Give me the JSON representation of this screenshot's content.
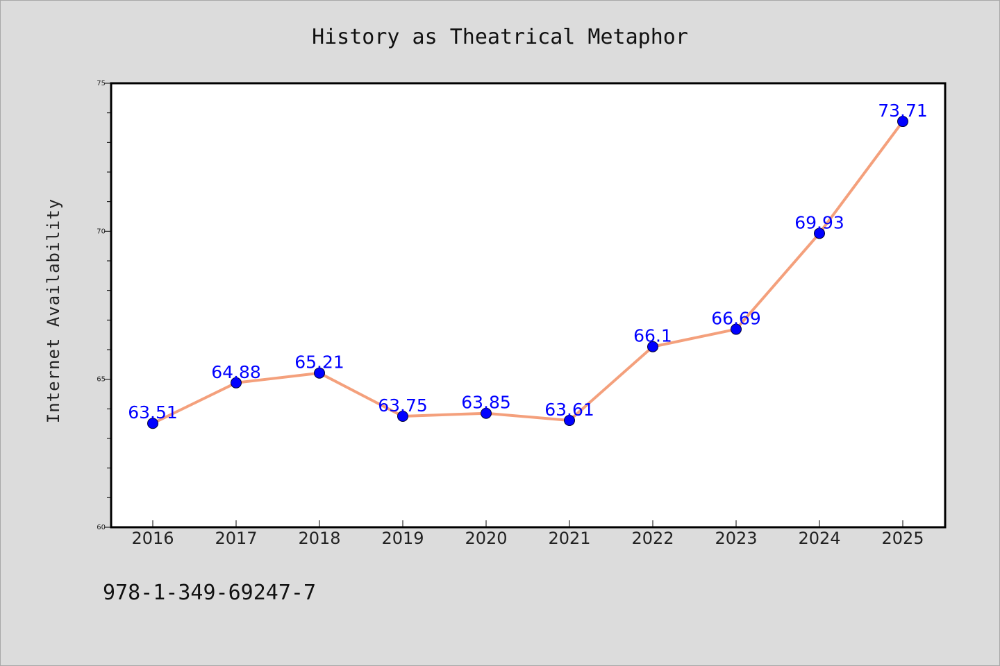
{
  "chart_data": {
    "type": "line",
    "title": "History as Theatrical Metaphor",
    "xlabel": "",
    "ylabel": "Internet Availability",
    "categories": [
      "2016",
      "2017",
      "2018",
      "2019",
      "2020",
      "2021",
      "2022",
      "2023",
      "2024",
      "2025"
    ],
    "series": [
      {
        "values": [
          63.51,
          64.88,
          65.21,
          63.75,
          63.85,
          63.61,
          66.1,
          66.69,
          69.93,
          73.71
        ],
        "labels": [
          "63.51",
          "64.88",
          "65.21",
          "63.75",
          "63.85",
          "63.61",
          "66.1",
          "66.69",
          "69.93",
          "73.71"
        ],
        "line_color": "#f4a07c",
        "marker_color": "#0000ff"
      }
    ],
    "ylim": [
      60,
      75
    ],
    "yticks": [
      "60",
      "65",
      "70",
      "75"
    ],
    "grid": false,
    "legend": "none"
  },
  "footer": {
    "isbn": "978-1-349-69247-7"
  },
  "colors": {
    "background": "#dcdcdc",
    "plot_background": "#ffffff",
    "label_color": "#0000ff"
  }
}
